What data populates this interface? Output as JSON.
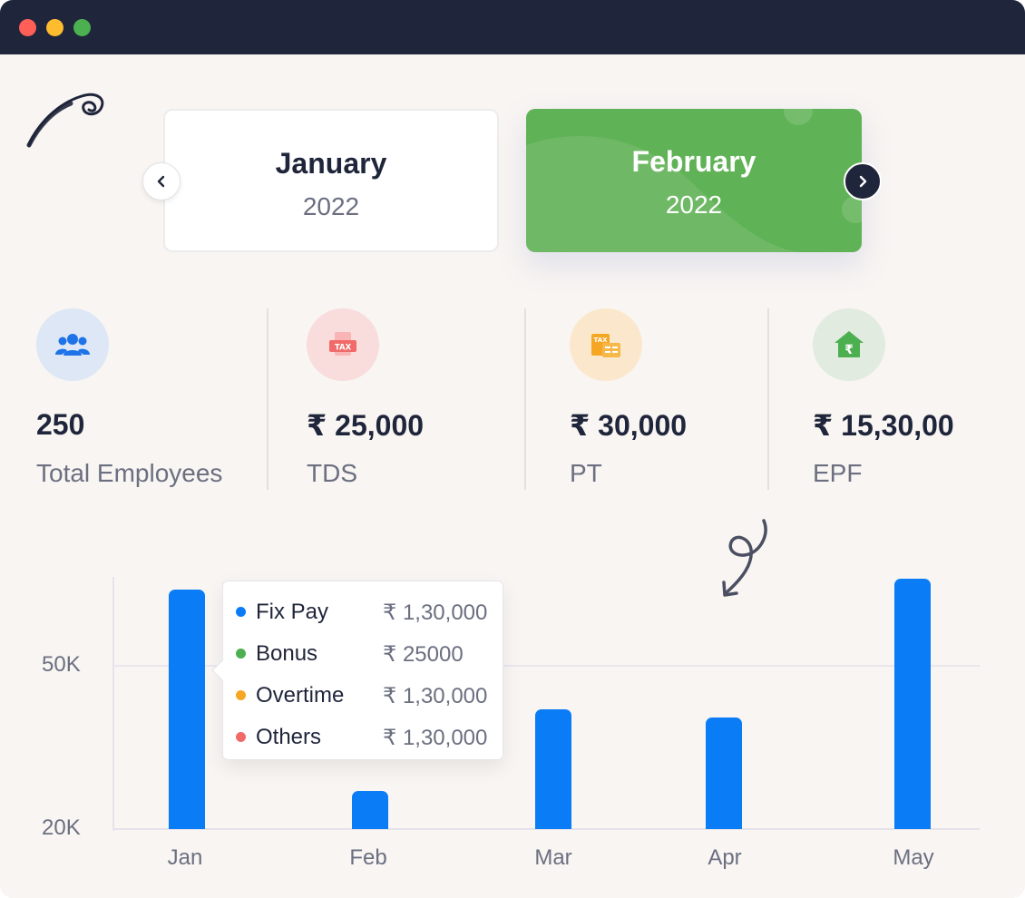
{
  "months": {
    "previous": {
      "name": "January",
      "year": "2022"
    },
    "current": {
      "name": "February",
      "year": "2022"
    }
  },
  "stats": [
    {
      "value": "250",
      "label": "Total Employees",
      "icon": "users-icon",
      "icon_bg": "#dde7f6",
      "icon_color": "#1e73e8"
    },
    {
      "value": "₹ 25,000",
      "label": "TDS",
      "icon": "tax-document-icon",
      "icon_bg": "#f9dcdc",
      "icon_color": "#f06a6a"
    },
    {
      "value": "₹ 30,000",
      "label": "PT",
      "icon": "tax-receipt-icon",
      "icon_bg": "#fbe8cc",
      "icon_color": "#f5a623"
    },
    {
      "value": "₹ 15,30,00",
      "label": "EPF",
      "icon": "rupee-home-icon",
      "icon_bg": "#e2ebe0",
      "icon_color": "#4caf50"
    }
  ],
  "chart_data": {
    "type": "bar",
    "categories": [
      "Jan",
      "Feb",
      "Mar",
      "Apr",
      "May"
    ],
    "values": [
      64000,
      27000,
      42000,
      40500,
      66000
    ],
    "yticks": [
      "50K",
      "20K"
    ],
    "ytick_values": [
      50000,
      20000
    ],
    "ylim": [
      20000,
      72000
    ],
    "bar_color": "#0a7cf6",
    "grid": true
  },
  "tooltip": {
    "items": [
      {
        "label": "Fix Pay",
        "value": "₹ 1,30,000",
        "color": "#0a7cf6"
      },
      {
        "label": "Bonus",
        "value": "₹ 25000",
        "color": "#4caf50"
      },
      {
        "label": "Overtime",
        "value": "₹ 1,30,000",
        "color": "#f5a623"
      },
      {
        "label": "Others",
        "value": "₹ 1,30,000",
        "color": "#f06a6a"
      }
    ]
  },
  "colors": {
    "titlebar": "#1f253a",
    "accent_green": "#5fb255",
    "text_dark": "#1f253a",
    "text_muted": "#6b6f80"
  }
}
